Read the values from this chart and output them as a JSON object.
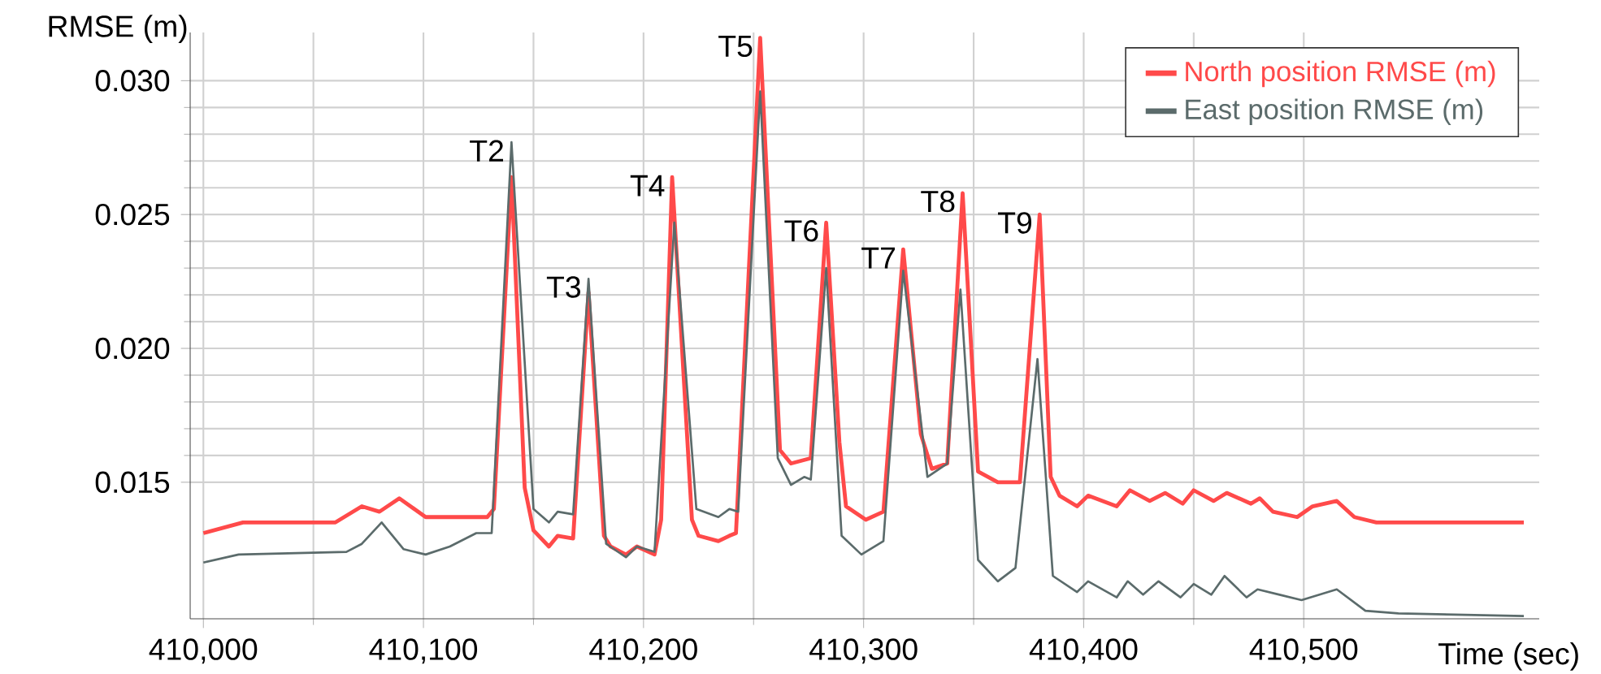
{
  "chart_data": {
    "type": "line",
    "xlabel": "Time (sec)",
    "ylabel": "RMSE (m)",
    "xlim": [
      409994,
      410607
    ],
    "ylim": [
      0.0099,
      0.0318
    ],
    "xticks": [
      {
        "value": 410000,
        "label": "410,000"
      },
      {
        "value": 410100,
        "label": "410,100"
      },
      {
        "value": 410200,
        "label": "410,200"
      },
      {
        "value": 410300,
        "label": "410,300"
      },
      {
        "value": 410400,
        "label": "410,400"
      },
      {
        "value": 410500,
        "label": "410,500"
      }
    ],
    "yticks": [
      {
        "value": 0.015,
        "label": "0.015"
      },
      {
        "value": 0.02,
        "label": "0.020"
      },
      {
        "value": 0.025,
        "label": "0.025"
      },
      {
        "value": 0.03,
        "label": "0.030"
      }
    ],
    "grid": true,
    "legend": "top right",
    "marker": "none",
    "line_style": "solid",
    "series": [
      {
        "name": "North position RMSE (m)",
        "color": "#ff4a4a",
        "x": [
          410000,
          410018,
          410060,
          410072,
          410080,
          410089,
          410101,
          410129,
          410132,
          410140,
          410146,
          410150,
          410157,
          410161,
          410168,
          410175,
          410182,
          410185,
          410192,
          410197,
          410205,
          410208,
          410213,
          410222,
          410225,
          410234,
          410239,
          410242,
          410253,
          410262,
          410267,
          410276,
          410283,
          410289,
          410292,
          410301,
          410309,
          410318,
          410326,
          410331,
          410338,
          410345,
          410352,
          410361,
          410371,
          410380,
          410385,
          410389,
          410397,
          410402,
          410415,
          410421,
          410430,
          410437,
          410445,
          410450,
          410459,
          410465,
          410476,
          410480,
          410486,
          410497,
          410504,
          410515,
          410523,
          410533,
          410543,
          410600
        ],
        "values": [
          0.0131,
          0.0135,
          0.0135,
          0.0141,
          0.0139,
          0.0144,
          0.0137,
          0.0137,
          0.014,
          0.0264,
          0.0148,
          0.0132,
          0.0126,
          0.013,
          0.0129,
          0.0221,
          0.013,
          0.0126,
          0.0123,
          0.0126,
          0.0123,
          0.0136,
          0.0264,
          0.0136,
          0.013,
          0.0128,
          0.013,
          0.0131,
          0.0316,
          0.0162,
          0.0157,
          0.0159,
          0.0247,
          0.0165,
          0.0141,
          0.0136,
          0.0139,
          0.0237,
          0.0168,
          0.0155,
          0.0157,
          0.0258,
          0.0154,
          0.015,
          0.015,
          0.025,
          0.0152,
          0.0145,
          0.0141,
          0.0145,
          0.0141,
          0.0147,
          0.0143,
          0.0146,
          0.0142,
          0.0147,
          0.0143,
          0.0146,
          0.0142,
          0.0144,
          0.0139,
          0.0137,
          0.0141,
          0.0143,
          0.0137,
          0.0135,
          0.0135,
          0.0135
        ]
      },
      {
        "name": "East position RMSE (m)",
        "color": "#5b6b6b",
        "x": [
          410000,
          410016,
          410065,
          410072,
          410081,
          410091,
          410101,
          410112,
          410124,
          410131,
          410140,
          410150,
          410157,
          410161,
          410168,
          410175,
          410183,
          410192,
          410197,
          410205,
          410214,
          410224,
          410234,
          410239,
          410243,
          410253,
          410261,
          410267,
          410273,
          410276,
          410283,
          410290,
          410299,
          410309,
          410318,
          410329,
          410338,
          410344,
          410352,
          410361,
          410369,
          410379,
          410386,
          410397,
          410402,
          410415,
          410420,
          410427,
          410434,
          410444,
          410450,
          410458,
          410464,
          410474,
          410479,
          410489,
          410499,
          410515,
          410528,
          410543,
          410600
        ],
        "values": [
          0.012,
          0.0123,
          0.0124,
          0.0127,
          0.0135,
          0.0125,
          0.0123,
          0.0126,
          0.0131,
          0.0131,
          0.0277,
          0.014,
          0.0135,
          0.0139,
          0.0138,
          0.0226,
          0.0127,
          0.0122,
          0.0126,
          0.0124,
          0.0247,
          0.014,
          0.0137,
          0.014,
          0.0139,
          0.0296,
          0.0159,
          0.0149,
          0.0152,
          0.0151,
          0.023,
          0.013,
          0.0123,
          0.0128,
          0.0229,
          0.0152,
          0.0157,
          0.0222,
          0.0121,
          0.0113,
          0.0118,
          0.0196,
          0.0115,
          0.0109,
          0.0113,
          0.0107,
          0.0113,
          0.0108,
          0.0113,
          0.0107,
          0.0112,
          0.0108,
          0.0115,
          0.0107,
          0.011,
          0.0108,
          0.0106,
          0.011,
          0.0102,
          0.0101,
          0.01
        ]
      }
    ],
    "annotations": [
      {
        "text": "T2",
        "x": 410140,
        "y": 0.0277
      },
      {
        "text": "T3",
        "x": 410175,
        "y": 0.0226
      },
      {
        "text": "T4",
        "x": 410213,
        "y": 0.0264
      },
      {
        "text": "T5",
        "x": 410253,
        "y": 0.0316
      },
      {
        "text": "T6",
        "x": 410283,
        "y": 0.0247
      },
      {
        "text": "T7",
        "x": 410318,
        "y": 0.0237
      },
      {
        "text": "T8",
        "x": 410345,
        "y": 0.0258
      },
      {
        "text": "T9",
        "x": 410380,
        "y": 0.025
      }
    ]
  }
}
